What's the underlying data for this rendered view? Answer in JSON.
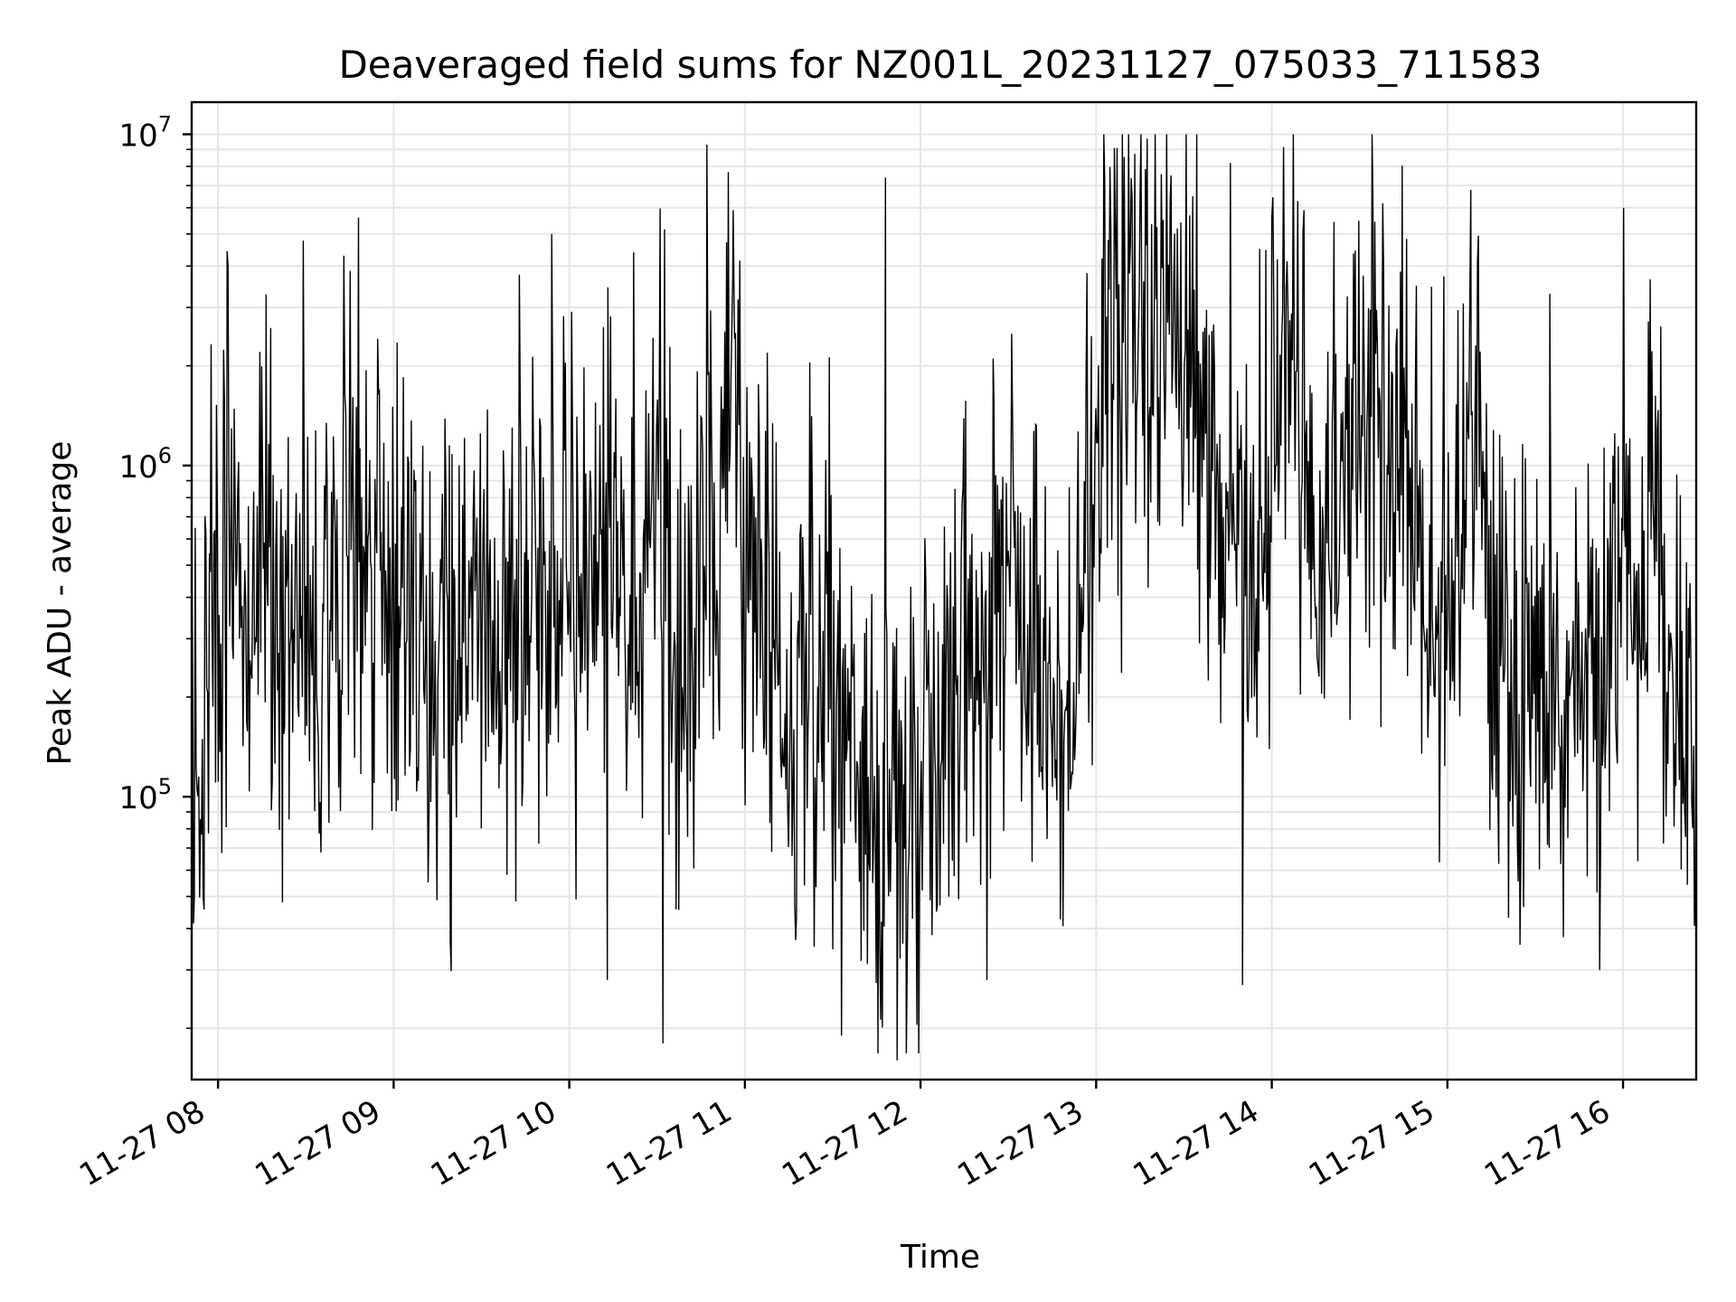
{
  "chart_data": {
    "type": "line",
    "title": "Deaveraged field sums for NZ001L_20231127_075033_711583",
    "xlabel": "Time",
    "ylabel": "Peak ADU - average",
    "yscale": "log",
    "ylim": [
      14000,
      12500000
    ],
    "xlim": [
      "2023-11-27 07:51",
      "2023-11-27 16:25"
    ],
    "grid": true,
    "grid_minor": true,
    "legend": "none",
    "x_ticks": [
      "11-27 08",
      "11-27 09",
      "11-27 10",
      "11-27 11",
      "11-27 12",
      "11-27 13",
      "11-27 14",
      "11-27 15",
      "11-27 16"
    ],
    "y_ticks": [
      {
        "value": 100000,
        "base": "10",
        "exp": "5"
      },
      {
        "value": 1000000,
        "base": "10",
        "exp": "6"
      },
      {
        "value": 10000000,
        "base": "10",
        "exp": "7"
      }
    ],
    "series": [
      {
        "color": "#000000",
        "x": [
          "2023-11-27 07:51",
          "2023-11-27 07:55",
          "2023-11-27 08:00",
          "2023-11-27 08:05",
          "2023-11-27 08:10",
          "2023-11-27 08:15",
          "2023-11-27 08:20",
          "2023-11-27 08:25",
          "2023-11-27 08:30",
          "2023-11-27 08:35",
          "2023-11-27 08:40",
          "2023-11-27 08:45",
          "2023-11-27 08:50",
          "2023-11-27 08:55",
          "2023-11-27 09:00",
          "2023-11-27 09:05",
          "2023-11-27 09:10",
          "2023-11-27 09:15",
          "2023-11-27 09:20",
          "2023-11-27 09:25",
          "2023-11-27 09:30",
          "2023-11-27 09:35",
          "2023-11-27 09:40",
          "2023-11-27 09:45",
          "2023-11-27 09:50",
          "2023-11-27 09:55",
          "2023-11-27 10:00",
          "2023-11-27 10:05",
          "2023-11-27 10:10",
          "2023-11-27 10:15",
          "2023-11-27 10:20",
          "2023-11-27 10:25",
          "2023-11-27 10:30",
          "2023-11-27 10:35",
          "2023-11-27 10:40",
          "2023-11-27 10:45",
          "2023-11-27 10:50",
          "2023-11-27 10:55",
          "2023-11-27 11:00",
          "2023-11-27 11:05",
          "2023-11-27 11:10",
          "2023-11-27 11:15",
          "2023-11-27 11:20",
          "2023-11-27 11:25",
          "2023-11-27 11:30",
          "2023-11-27 11:35",
          "2023-11-27 11:40",
          "2023-11-27 11:45",
          "2023-11-27 11:50",
          "2023-11-27 11:55",
          "2023-11-27 12:00",
          "2023-11-27 12:05",
          "2023-11-27 12:10",
          "2023-11-27 12:15",
          "2023-11-27 12:20",
          "2023-11-27 12:25",
          "2023-11-27 12:30",
          "2023-11-27 12:35",
          "2023-11-27 12:40",
          "2023-11-27 12:45",
          "2023-11-27 12:50",
          "2023-11-27 12:55",
          "2023-11-27 13:00",
          "2023-11-27 13:05",
          "2023-11-27 13:10",
          "2023-11-27 13:15",
          "2023-11-27 13:20",
          "2023-11-27 13:25",
          "2023-11-27 13:30",
          "2023-11-27 13:35",
          "2023-11-27 13:40",
          "2023-11-27 13:45",
          "2023-11-27 13:50",
          "2023-11-27 13:55",
          "2023-11-27 14:00",
          "2023-11-27 14:05",
          "2023-11-27 14:10",
          "2023-11-27 14:15",
          "2023-11-27 14:20",
          "2023-11-27 14:25",
          "2023-11-27 14:30",
          "2023-11-27 14:35",
          "2023-11-27 14:40",
          "2023-11-27 14:45",
          "2023-11-27 14:50",
          "2023-11-27 14:55",
          "2023-11-27 15:00",
          "2023-11-27 15:05",
          "2023-11-27 15:10",
          "2023-11-27 15:15",
          "2023-11-27 15:20",
          "2023-11-27 15:25",
          "2023-11-27 15:30",
          "2023-11-27 15:35",
          "2023-11-27 15:40",
          "2023-11-27 15:45",
          "2023-11-27 15:50",
          "2023-11-27 15:55",
          "2023-11-27 16:00",
          "2023-11-27 16:05",
          "2023-11-27 16:10",
          "2023-11-27 16:15",
          "2023-11-27 16:20",
          "2023-11-27 16:25"
        ],
        "y": [
          300000,
          150000,
          600000,
          500000,
          450000,
          600000,
          350000,
          400000,
          450000,
          300000,
          400000,
          550000,
          350000,
          800000,
          350000,
          400000,
          200000,
          450000,
          350000,
          400000,
          500000,
          250000,
          400000,
          450000,
          500000,
          400000,
          600000,
          350000,
          450000,
          700000,
          350000,
          250000,
          2000000,
          300000,
          150000,
          800000,
          600000,
          1500000,
          700000,
          300000,
          350000,
          150000,
          200000,
          250000,
          200000,
          150000,
          120000,
          100000,
          80000,
          60000,
          90000,
          100000,
          200000,
          300000,
          150000,
          250000,
          600000,
          400000,
          250000,
          150000,
          200000,
          400000,
          1200000,
          2500000,
          1500000,
          3000000,
          2000000,
          2500000,
          2200000,
          1500000,
          1200000,
          800000,
          600000,
          500000,
          1000000,
          2000000,
          1500000,
          800000,
          600000,
          700000,
          1200000,
          2000000,
          1000000,
          1200000,
          500000,
          300000,
          400000,
          600000,
          2500000,
          400000,
          300000,
          200000,
          250000,
          200000,
          150000,
          250000,
          350000,
          300000,
          400000,
          300000,
          600000,
          250000,
          150000,
          200000
        ],
        "peaks": [
          {
            "x": "2023-11-27 08:18",
            "y": 2600000
          },
          {
            "x": "2023-11-27 08:43",
            "y": 4300000
          },
          {
            "x": "2023-11-27 08:48",
            "y": 5600000
          },
          {
            "x": "2023-11-27 09:54",
            "y": 5000000
          },
          {
            "x": "2023-11-27 10:22",
            "y": 4400000
          },
          {
            "x": "2023-11-27 10:47",
            "y": 9300000
          },
          {
            "x": "2023-11-27 10:56",
            "y": 5900000
          },
          {
            "x": "2023-11-27 11:48",
            "y": 7400000
          },
          {
            "x": "2023-11-27 13:15",
            "y": 6500000
          },
          {
            "x": "2023-11-27 13:33",
            "y": 6500000
          },
          {
            "x": "2023-11-27 14:00",
            "y": 5600000
          },
          {
            "x": "2023-11-27 14:11",
            "y": 5900000
          },
          {
            "x": "2023-11-27 15:08",
            "y": 6800000
          },
          {
            "x": "2023-11-27 15:35",
            "y": 3300000
          }
        ],
        "troughs": [
          {
            "x": "2023-11-27 08:22",
            "y": 48000
          },
          {
            "x": "2023-11-27 10:13",
            "y": 28000
          },
          {
            "x": "2023-11-27 10:32",
            "y": 18000
          },
          {
            "x": "2023-11-27 11:33",
            "y": 19000
          },
          {
            "x": "2023-11-27 11:52",
            "y": 16000
          },
          {
            "x": "2023-11-27 13:50",
            "y": 27000
          },
          {
            "x": "2023-11-27 15:52",
            "y": 30000
          }
        ]
      }
    ]
  }
}
